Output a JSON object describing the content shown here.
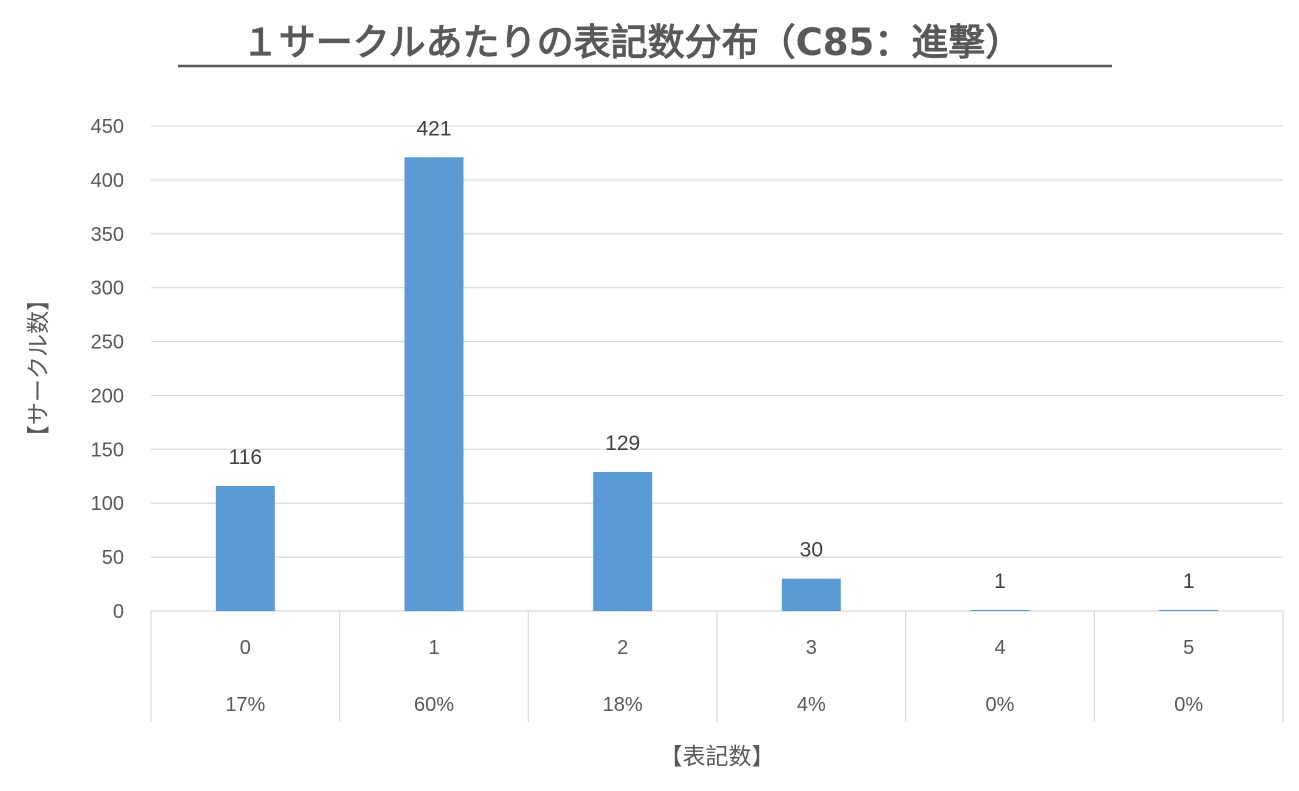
{
  "chart_data": {
    "type": "bar",
    "title": "１サークルあたりの表記数分布（C85：進撃）",
    "xlabel": "【表記数】",
    "ylabel": "【サークル数】",
    "categories": [
      "0",
      "1",
      "2",
      "3",
      "4",
      "5"
    ],
    "percentages": [
      "17%",
      "60%",
      "18%",
      "4%",
      "0%",
      "0%"
    ],
    "values": [
      116,
      421,
      129,
      30,
      1,
      1
    ],
    "data_labels": [
      "116",
      "421",
      "129",
      "30",
      "1",
      "1"
    ],
    "ylim": [
      0,
      450
    ],
    "yticks": [
      0,
      50,
      100,
      150,
      200,
      250,
      300,
      350,
      400,
      450
    ],
    "ytick_labels": [
      "0",
      "50",
      "100",
      "150",
      "200",
      "250",
      "300",
      "350",
      "400",
      "450"
    ],
    "grid": true,
    "legend": "none",
    "bar_color": "#5b9bd5"
  }
}
